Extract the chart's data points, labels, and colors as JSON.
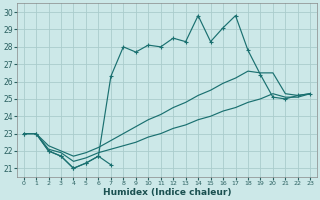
{
  "xlabel": "Humidex (Indice chaleur)",
  "bg_color": "#cce8e8",
  "grid_color": "#aacccc",
  "line_color": "#1a7070",
  "xlim": [
    -0.5,
    23.5
  ],
  "ylim": [
    20.5,
    30.5
  ],
  "xticks": [
    0,
    1,
    2,
    3,
    4,
    5,
    6,
    7,
    8,
    9,
    10,
    11,
    12,
    13,
    14,
    15,
    16,
    17,
    18,
    19,
    20,
    21,
    22,
    23
  ],
  "yticks": [
    21,
    22,
    23,
    24,
    25,
    26,
    27,
    28,
    29,
    30
  ],
  "series_zigzag": {
    "x": [
      0,
      1,
      2,
      3,
      4,
      5,
      6,
      7
    ],
    "y": [
      23.0,
      23.0,
      22.0,
      21.7,
      21.0,
      21.3,
      21.7,
      21.2
    ]
  },
  "series_high": {
    "x": [
      0,
      1,
      2,
      3,
      4,
      5,
      6,
      7,
      8,
      9,
      10,
      11,
      12,
      13,
      14,
      15,
      16,
      17,
      18,
      19,
      20,
      21,
      22,
      23
    ],
    "y": [
      23.0,
      23.0,
      22.0,
      21.7,
      21.0,
      21.3,
      21.7,
      26.3,
      28.0,
      27.7,
      28.1,
      28.0,
      28.5,
      28.3,
      29.8,
      28.3,
      29.1,
      29.8,
      27.8,
      26.4,
      25.1,
      25.0,
      25.2,
      25.3
    ]
  },
  "series_upper_trend": {
    "x": [
      0,
      1,
      2,
      3,
      4,
      5,
      6,
      7,
      8,
      9,
      10,
      11,
      12,
      13,
      14,
      15,
      16,
      17,
      18,
      19,
      20,
      21,
      22,
      23
    ],
    "y": [
      23.0,
      23.0,
      22.3,
      22.0,
      21.7,
      21.9,
      22.2,
      22.6,
      23.0,
      23.4,
      23.8,
      24.1,
      24.5,
      24.8,
      25.2,
      25.5,
      25.9,
      26.2,
      26.6,
      26.5,
      26.5,
      25.3,
      25.2,
      25.3
    ]
  },
  "series_lower_trend": {
    "x": [
      0,
      1,
      2,
      3,
      4,
      5,
      6,
      7,
      8,
      9,
      10,
      11,
      12,
      13,
      14,
      15,
      16,
      17,
      18,
      19,
      20,
      21,
      22,
      23
    ],
    "y": [
      23.0,
      23.0,
      22.1,
      21.9,
      21.4,
      21.6,
      21.9,
      22.1,
      22.3,
      22.5,
      22.8,
      23.0,
      23.3,
      23.5,
      23.8,
      24.0,
      24.3,
      24.5,
      24.8,
      25.0,
      25.3,
      25.1,
      25.1,
      25.3
    ]
  }
}
